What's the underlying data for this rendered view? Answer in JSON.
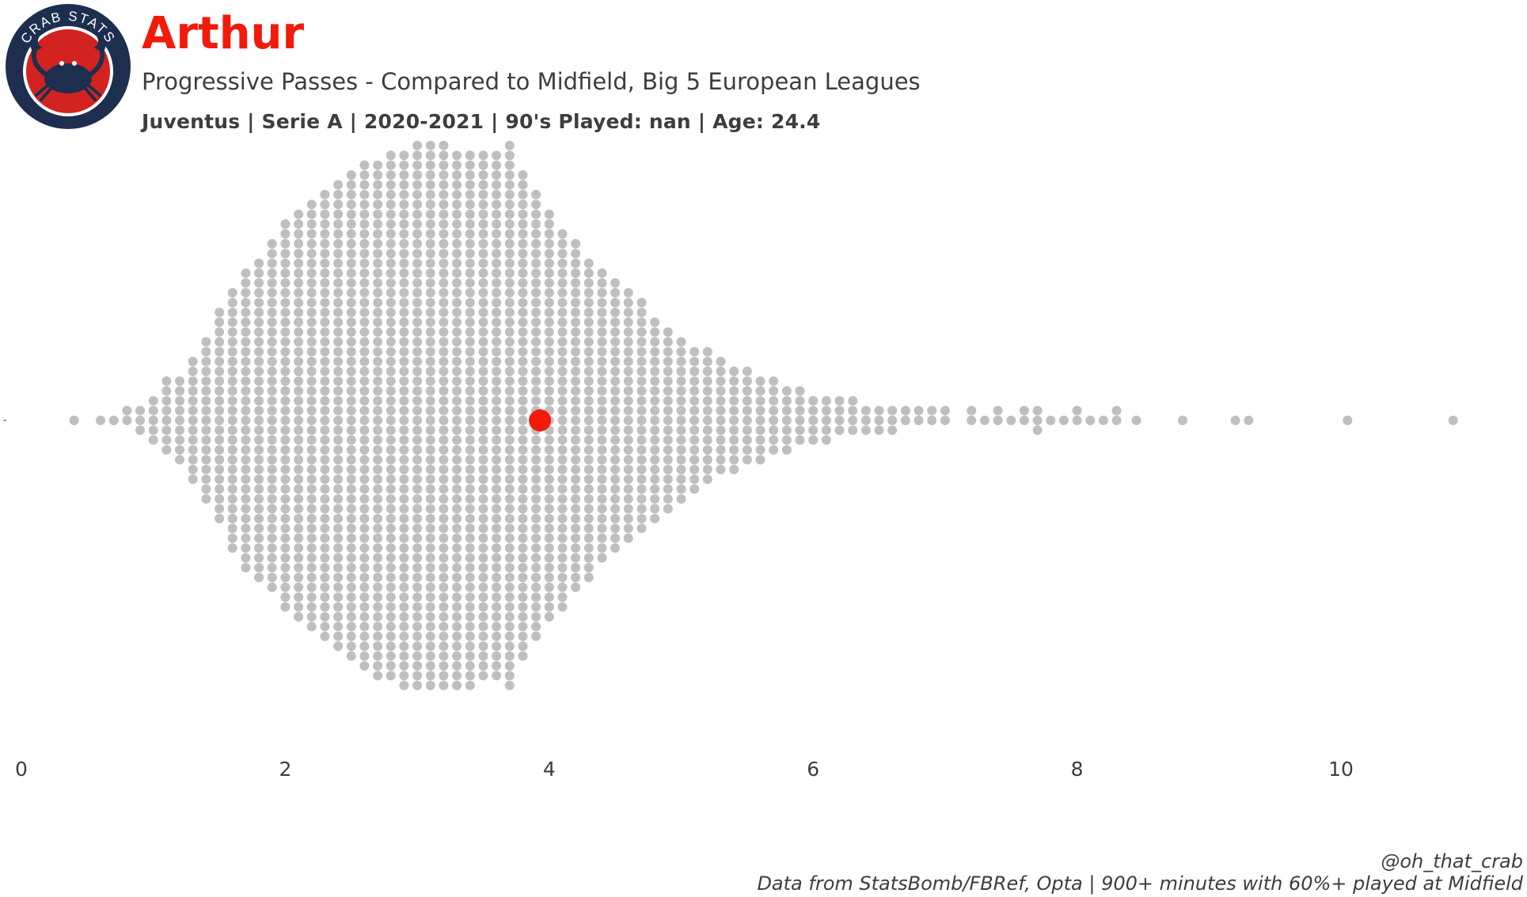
{
  "logo": {
    "text": "CRAB STATS",
    "outer_color": "#1d2e4f",
    "inner_color": "#d32320"
  },
  "header": {
    "title": "Arthur",
    "subtitle": "Progressive Passes - Compared to Midfield, Big 5 European Leagues",
    "info": "Juventus  | Serie A | 2020-2021 | 90's Played: nan | Age: 24.4"
  },
  "footer": {
    "credit": "@oh_that_crab",
    "source": "Data from StatsBomb/FBRef, Opta | 900+ minutes with 60%+ played at Midfield"
  },
  "colors": {
    "title": "#f21a0a",
    "highlight": "#f21a0a",
    "population": "#bfbfbf",
    "text": "#3d3d3d"
  },
  "chart_data": {
    "type": "scatter",
    "style": "beeswarm",
    "xlim": [
      0,
      11
    ],
    "xticks": [
      "0",
      "2",
      "4",
      "6",
      "8",
      "10"
    ],
    "grid": false,
    "highlight": {
      "value": 3.93
    },
    "population_bins": [
      {
        "x": 0.4,
        "count": 1
      },
      {
        "x": 0.6,
        "count": 1
      },
      {
        "x": 0.7,
        "count": 1
      },
      {
        "x": 0.8,
        "count": 2
      },
      {
        "x": 0.9,
        "count": 3
      },
      {
        "x": 1.0,
        "count": 5
      },
      {
        "x": 1.1,
        "count": 8
      },
      {
        "x": 1.2,
        "count": 9
      },
      {
        "x": 1.3,
        "count": 13
      },
      {
        "x": 1.4,
        "count": 17
      },
      {
        "x": 1.5,
        "count": 22
      },
      {
        "x": 1.6,
        "count": 27
      },
      {
        "x": 1.7,
        "count": 31
      },
      {
        "x": 1.8,
        "count": 33
      },
      {
        "x": 1.9,
        "count": 36
      },
      {
        "x": 2.0,
        "count": 40
      },
      {
        "x": 2.1,
        "count": 42
      },
      {
        "x": 2.2,
        "count": 44
      },
      {
        "x": 2.3,
        "count": 46
      },
      {
        "x": 2.4,
        "count": 48
      },
      {
        "x": 2.5,
        "count": 50
      },
      {
        "x": 2.6,
        "count": 52
      },
      {
        "x": 2.7,
        "count": 53
      },
      {
        "x": 2.8,
        "count": 54
      },
      {
        "x": 2.9,
        "count": 55
      },
      {
        "x": 3.0,
        "count": 56
      },
      {
        "x": 3.1,
        "count": 56
      },
      {
        "x": 3.2,
        "count": 56
      },
      {
        "x": 3.3,
        "count": 55
      },
      {
        "x": 3.4,
        "count": 55
      },
      {
        "x": 3.5,
        "count": 54
      },
      {
        "x": 3.6,
        "count": 54
      },
      {
        "x": 3.7,
        "count": 56
      },
      {
        "x": 3.8,
        "count": 50
      },
      {
        "x": 3.9,
        "count": 46
      },
      {
        "x": 4.0,
        "count": 42
      },
      {
        "x": 4.1,
        "count": 39
      },
      {
        "x": 4.2,
        "count": 36
      },
      {
        "x": 4.3,
        "count": 33
      },
      {
        "x": 4.4,
        "count": 30
      },
      {
        "x": 4.5,
        "count": 28
      },
      {
        "x": 4.6,
        "count": 26
      },
      {
        "x": 4.7,
        "count": 24
      },
      {
        "x": 4.8,
        "count": 21
      },
      {
        "x": 4.9,
        "count": 19
      },
      {
        "x": 5.0,
        "count": 17
      },
      {
        "x": 5.1,
        "count": 15
      },
      {
        "x": 5.2,
        "count": 14
      },
      {
        "x": 5.3,
        "count": 12
      },
      {
        "x": 5.4,
        "count": 11
      },
      {
        "x": 5.5,
        "count": 10
      },
      {
        "x": 5.6,
        "count": 9
      },
      {
        "x": 5.7,
        "count": 8
      },
      {
        "x": 5.8,
        "count": 7
      },
      {
        "x": 5.9,
        "count": 6
      },
      {
        "x": 6.0,
        "count": 5
      },
      {
        "x": 6.1,
        "count": 5
      },
      {
        "x": 6.2,
        "count": 4
      },
      {
        "x": 6.3,
        "count": 4
      },
      {
        "x": 6.4,
        "count": 3
      },
      {
        "x": 6.5,
        "count": 3
      },
      {
        "x": 6.6,
        "count": 3
      },
      {
        "x": 6.7,
        "count": 2
      },
      {
        "x": 6.8,
        "count": 2
      },
      {
        "x": 6.9,
        "count": 2
      },
      {
        "x": 7.0,
        "count": 2
      },
      {
        "x": 7.2,
        "count": 2
      },
      {
        "x": 7.3,
        "count": 1
      },
      {
        "x": 7.4,
        "count": 2
      },
      {
        "x": 7.5,
        "count": 1
      },
      {
        "x": 7.6,
        "count": 2
      },
      {
        "x": 7.7,
        "count": 3
      },
      {
        "x": 7.8,
        "count": 1
      },
      {
        "x": 7.9,
        "count": 1
      },
      {
        "x": 8.0,
        "count": 2
      },
      {
        "x": 8.1,
        "count": 1
      },
      {
        "x": 8.2,
        "count": 1
      },
      {
        "x": 8.3,
        "count": 2
      },
      {
        "x": 8.45,
        "count": 1
      },
      {
        "x": 8.8,
        "count": 1
      },
      {
        "x": 9.2,
        "count": 1
      },
      {
        "x": 9.3,
        "count": 1
      },
      {
        "x": 10.05,
        "count": 1
      },
      {
        "x": 10.85,
        "count": 1
      }
    ]
  }
}
